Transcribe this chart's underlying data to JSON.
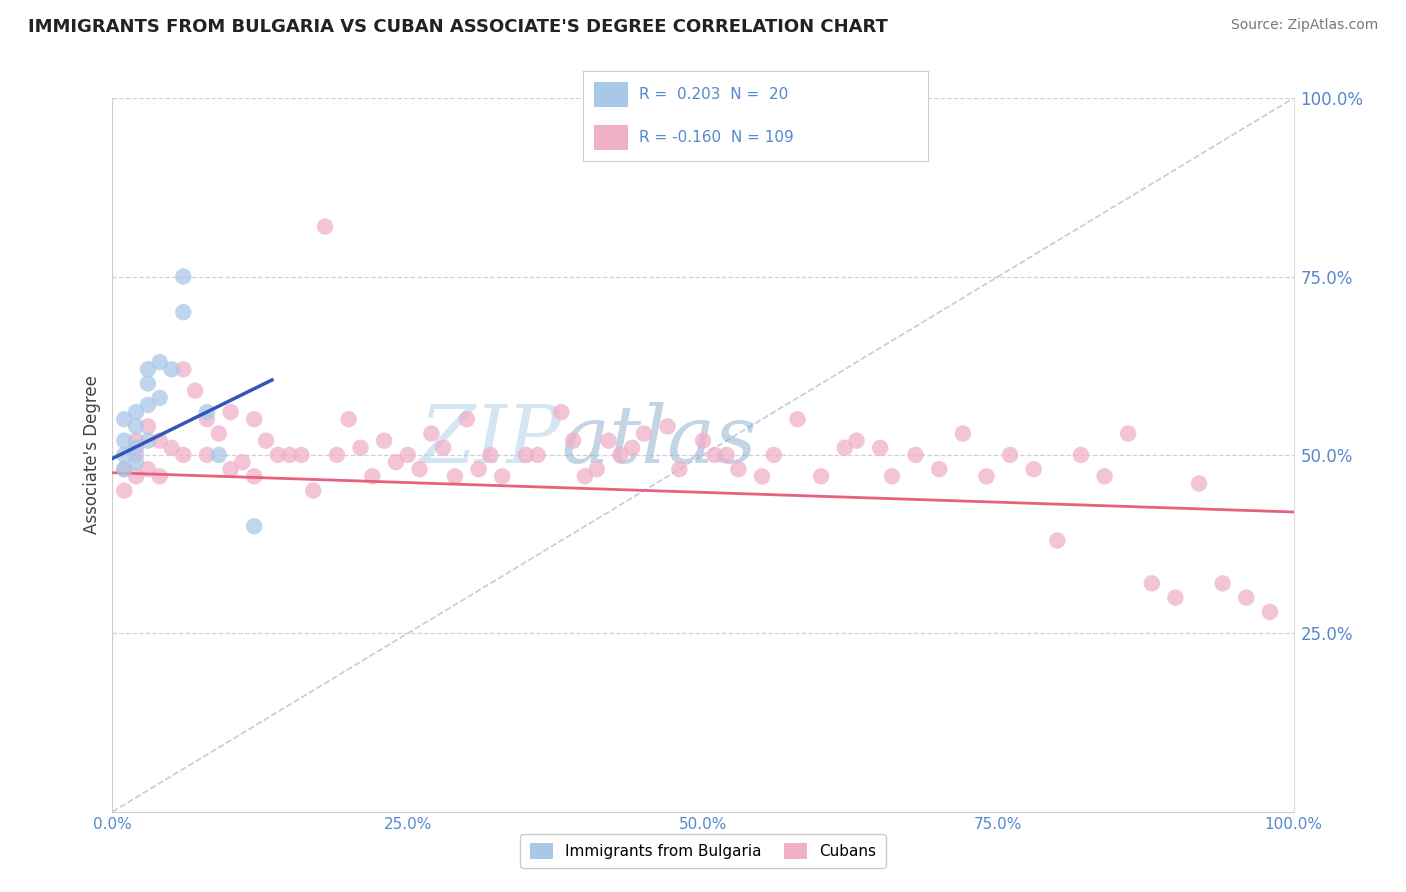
{
  "title": "IMMIGRANTS FROM BULGARIA VS CUBAN ASSOCIATE'S DEGREE CORRELATION CHART",
  "source_text": "Source: ZipAtlas.com",
  "ylabel": "Associate's Degree",
  "xlim": [
    0.0,
    1.0
  ],
  "ylim": [
    0.0,
    1.0
  ],
  "xticks": [
    0.0,
    0.25,
    0.5,
    0.75,
    1.0
  ],
  "xtick_labels": [
    "0.0%",
    "25.0%",
    "50.0%",
    "75.0%",
    "100.0%"
  ],
  "yticks": [
    0.25,
    0.5,
    0.75,
    1.0
  ],
  "ytick_labels": [
    "25.0%",
    "50.0%",
    "75.0%",
    "100.0%"
  ],
  "watermark_line1": "ZIP",
  "watermark_line2": "atlas",
  "bg_color": "#ffffff",
  "grid_color": "#cccccc",
  "blue_scatter_color": "#a8c8e8",
  "pink_scatter_color": "#f0b0c8",
  "blue_line_color": "#3355bb",
  "pink_line_color": "#e8607a",
  "dashed_line_color": "#b8c8e0",
  "tick_color": "#5588cc",
  "blue_points_x": [
    0.01,
    0.01,
    0.01,
    0.01,
    0.02,
    0.02,
    0.02,
    0.02,
    0.03,
    0.03,
    0.03,
    0.03,
    0.04,
    0.04,
    0.05,
    0.06,
    0.06,
    0.08,
    0.09,
    0.12
  ],
  "blue_points_y": [
    0.52,
    0.55,
    0.5,
    0.48,
    0.54,
    0.56,
    0.51,
    0.49,
    0.62,
    0.6,
    0.57,
    0.52,
    0.63,
    0.58,
    0.62,
    0.75,
    0.7,
    0.56,
    0.5,
    0.4
  ],
  "pink_points_x": [
    0.01,
    0.01,
    0.02,
    0.02,
    0.02,
    0.03,
    0.03,
    0.04,
    0.04,
    0.05,
    0.06,
    0.06,
    0.07,
    0.08,
    0.08,
    0.09,
    0.1,
    0.1,
    0.11,
    0.12,
    0.12,
    0.13,
    0.14,
    0.15,
    0.16,
    0.17,
    0.18,
    0.19,
    0.2,
    0.21,
    0.22,
    0.23,
    0.24,
    0.25,
    0.26,
    0.27,
    0.28,
    0.29,
    0.3,
    0.31,
    0.32,
    0.33,
    0.35,
    0.36,
    0.38,
    0.39,
    0.4,
    0.41,
    0.42,
    0.43,
    0.44,
    0.45,
    0.47,
    0.48,
    0.5,
    0.51,
    0.52,
    0.53,
    0.55,
    0.56,
    0.58,
    0.6,
    0.62,
    0.63,
    0.65,
    0.66,
    0.68,
    0.7,
    0.72,
    0.74,
    0.76,
    0.78,
    0.8,
    0.82,
    0.84,
    0.86,
    0.88,
    0.9,
    0.92,
    0.94,
    0.96,
    0.98
  ],
  "pink_points_y": [
    0.48,
    0.45,
    0.5,
    0.47,
    0.52,
    0.54,
    0.48,
    0.52,
    0.47,
    0.51,
    0.62,
    0.5,
    0.59,
    0.55,
    0.5,
    0.53,
    0.56,
    0.48,
    0.49,
    0.55,
    0.47,
    0.52,
    0.5,
    0.5,
    0.5,
    0.45,
    0.82,
    0.5,
    0.55,
    0.51,
    0.47,
    0.52,
    0.49,
    0.5,
    0.48,
    0.53,
    0.51,
    0.47,
    0.55,
    0.48,
    0.5,
    0.47,
    0.5,
    0.5,
    0.56,
    0.52,
    0.47,
    0.48,
    0.52,
    0.5,
    0.51,
    0.53,
    0.54,
    0.48,
    0.52,
    0.5,
    0.5,
    0.48,
    0.47,
    0.5,
    0.55,
    0.47,
    0.51,
    0.52,
    0.51,
    0.47,
    0.5,
    0.48,
    0.53,
    0.47,
    0.5,
    0.48,
    0.38,
    0.5,
    0.47,
    0.53,
    0.32,
    0.3,
    0.46,
    0.32,
    0.3,
    0.28
  ],
  "blue_line_x": [
    0.0,
    0.135
  ],
  "blue_line_y": [
    0.495,
    0.605
  ],
  "pink_line_x": [
    0.0,
    1.0
  ],
  "pink_line_y": [
    0.475,
    0.42
  ],
  "diag_line_x": [
    0.0,
    1.0
  ],
  "diag_line_y": [
    0.0,
    1.0
  ]
}
